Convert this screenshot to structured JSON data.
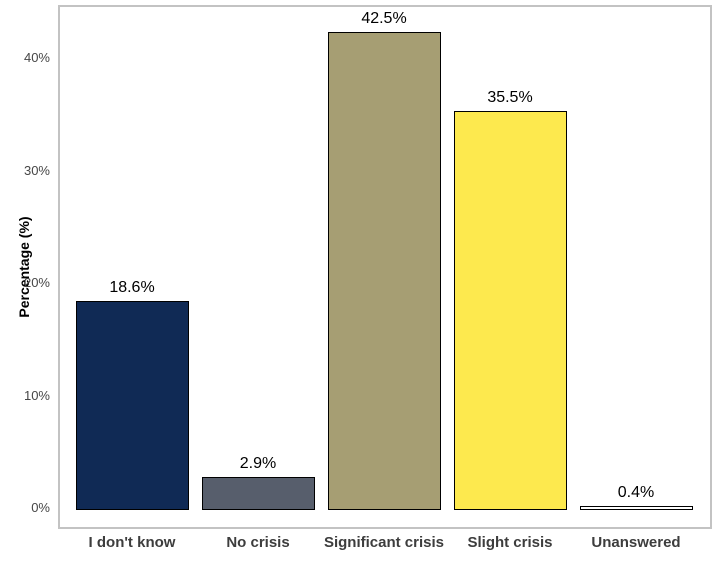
{
  "chart_data": {
    "type": "bar",
    "categories": [
      "I don't know",
      "No crisis",
      "Significant crisis",
      "Slight crisis",
      "Unanswered"
    ],
    "values": [
      18.6,
      2.9,
      42.5,
      35.5,
      0.4
    ],
    "value_labels": [
      "18.6%",
      "2.9%",
      "42.5%",
      "35.5%",
      "0.4%"
    ],
    "bar_colors": [
      "#102a55",
      "#575e6c",
      "#a69e73",
      "#fde94e",
      "#ffffff"
    ],
    "bar_border_color": "#000000",
    "title": "",
    "xlabel": "",
    "ylabel": "Percentage (%)",
    "ylim": [
      0,
      44.7
    ],
    "yticks": [
      {
        "value": 0,
        "label": "0%"
      },
      {
        "value": 10,
        "label": "10%"
      },
      {
        "value": 20,
        "label": "20%"
      },
      {
        "value": 30,
        "label": "30%"
      },
      {
        "value": 40,
        "label": "40%"
      }
    ],
    "grid": false,
    "legend_position": "none",
    "panel_border_color": "#c3c3c3",
    "background_color": "#ffffff"
  }
}
